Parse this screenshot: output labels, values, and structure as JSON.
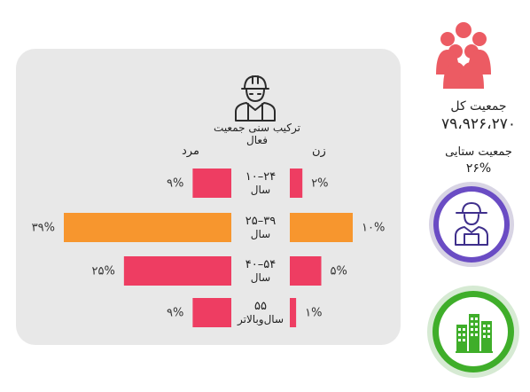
{
  "chart_data": {
    "type": "bar",
    "title": "ترکیب سنی جمعیت فعال",
    "men_label": "مرد",
    "women_label": "زن",
    "categories": [
      {
        "line1": "۱۰–۲۴",
        "line2": "سال"
      },
      {
        "line1": "۲۵–۳۹",
        "line2": "سال"
      },
      {
        "line1": "۴۰–۵۴",
        "line2": "سال"
      },
      {
        "line1": "۵۵",
        "line2": "سال‌وبالاتر"
      }
    ],
    "series": [
      {
        "name": "مرد",
        "values": [
          9,
          39,
          25,
          9
        ],
        "labels": [
          "۹%",
          "۳۹%",
          "۲۵%",
          "۹%"
        ]
      },
      {
        "name": "زن",
        "values": [
          2,
          10,
          5,
          1
        ],
        "labels": [
          "۲%",
          "۱۰%",
          "۵%",
          "۱%"
        ]
      }
    ],
    "bar_colors": [
      "#ee3d62",
      "#f7962e",
      "#ee3d62",
      "#ee3d62"
    ]
  },
  "summary": {
    "total_label": "جمعیت کل",
    "total_value": "۷۹،۹۲۶،۲۷۰",
    "village_label": "جمعیت   ستایی",
    "village_value": "۲۶%"
  },
  "icons": {
    "population": "people-group-icon",
    "worker": "worker-helmet-icon",
    "farmer": "farmer-icon",
    "city": "city-buildings-icon"
  },
  "colors": {
    "pink": "#ee3d62",
    "orange": "#f7962e",
    "people": "#ec5b63",
    "purple": "#6a4cc4",
    "green": "#3fae2a"
  }
}
